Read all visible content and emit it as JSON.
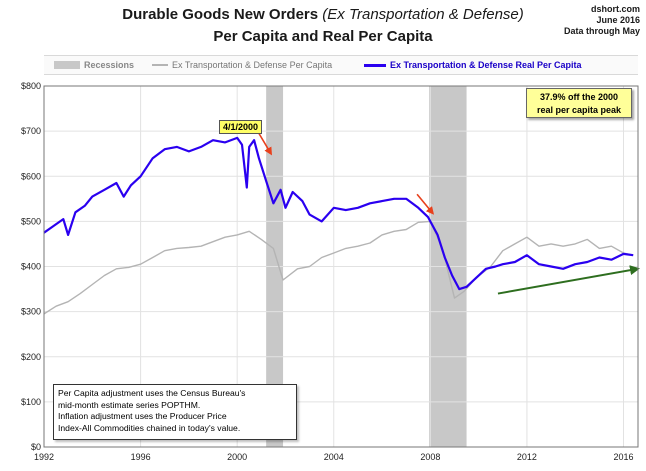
{
  "header": {
    "title_main": "Durable Goods New Orders ",
    "title_italic": "(Ex Transportation & Defense)",
    "subtitle": "Per Capita and Real Per Capita",
    "source_site": "dshort.com",
    "source_date": "June 2016",
    "source_note": "Data through May"
  },
  "callouts": {
    "peak_text_line1": "37.9% off the 2000",
    "peak_text_line2": "real per capita peak",
    "peak_date": "4/1/2000"
  },
  "notes": {
    "line1": "Per Capita adjustment uses the Census Bureau's",
    "line2": "mid-month estimate series POPTHM.",
    "line3": "Inflation adjustment uses the Producer Price",
    "line4": "Index-All Commodities chained in today's value."
  },
  "colors": {
    "real": "#2a00f0",
    "nominal": "#b4b4b4",
    "recession": "#c8c8c8",
    "arrow_red": "#e8401c",
    "trend_green": "#2e6e1f"
  },
  "chart_data": {
    "type": "line",
    "title": "Durable Goods New Orders (Ex Transportation & Defense) Per Capita and Real Per Capita",
    "xlabel": "",
    "ylabel": "",
    "xlim": [
      1992.0,
      2016.6
    ],
    "ylim": [
      0,
      800
    ],
    "grid": true,
    "x_ticks": [
      1992,
      1996,
      2000,
      2004,
      2008,
      2012,
      2016
    ],
    "y_ticks": [
      0,
      100,
      200,
      300,
      400,
      500,
      600,
      700,
      800
    ],
    "y_tick_labels": [
      "$0",
      "$100",
      "$200",
      "$300",
      "$400",
      "$500",
      "$600",
      "$700",
      "$800"
    ],
    "x_tick_labels": [
      "1992",
      "1996",
      "2000",
      "2004",
      "2008",
      "2012",
      "2016"
    ],
    "legend": {
      "position": "top",
      "items": [
        "Recessions",
        "Ex Transportation & Defense Per Capita",
        "Ex Transportation & Defense Real Per Capita"
      ]
    },
    "recessions": [
      {
        "start": 2001.2,
        "end": 2001.9
      },
      {
        "start": 2007.95,
        "end": 2009.5
      }
    ],
    "series": [
      {
        "name": "Ex Transportation & Defense Per Capita",
        "x": [
          1992.0,
          1992.5,
          1993.0,
          1993.5,
          1994.0,
          1994.5,
          1995.0,
          1995.5,
          1996.0,
          1996.5,
          1997.0,
          1997.5,
          1998.0,
          1998.5,
          1999.0,
          1999.5,
          2000.0,
          2000.5,
          2001.0,
          2001.5,
          2001.9,
          2002.5,
          2003.0,
          2003.5,
          2004.0,
          2004.5,
          2005.0,
          2005.5,
          2006.0,
          2006.5,
          2007.0,
          2007.5,
          2008.0,
          2008.5,
          2009.0,
          2009.4,
          2009.9,
          2010.5,
          2011.0,
          2011.5,
          2012.0,
          2012.5,
          2013.0,
          2013.5,
          2014.0,
          2014.5,
          2015.0,
          2015.5,
          2016.0,
          2016.4
        ],
        "values": [
          295,
          312,
          322,
          340,
          360,
          380,
          395,
          398,
          405,
          420,
          435,
          440,
          442,
          445,
          455,
          465,
          470,
          478,
          460,
          440,
          370,
          395,
          400,
          420,
          430,
          440,
          445,
          452,
          470,
          478,
          482,
          498,
          500,
          440,
          330,
          345,
          375,
          400,
          435,
          450,
          465,
          445,
          450,
          445,
          450,
          460,
          440,
          445,
          430,
          425
        ]
      },
      {
        "name": "Ex Transportation & Defense Real Per Capita",
        "x": [
          1992.0,
          1992.4,
          1992.8,
          1993.0,
          1993.3,
          1993.7,
          1994.0,
          1994.5,
          1995.0,
          1995.3,
          1995.6,
          1996.0,
          1996.5,
          1997.0,
          1997.5,
          1998.0,
          1998.5,
          1999.0,
          1999.5,
          2000.0,
          2000.2,
          2000.4,
          2000.5,
          2000.7,
          2000.9,
          2001.2,
          2001.5,
          2001.8,
          2002.0,
          2002.3,
          2002.7,
          2003.0,
          2003.5,
          2004.0,
          2004.5,
          2005.0,
          2005.5,
          2006.0,
          2006.5,
          2007.0,
          2007.5,
          2007.9,
          2008.3,
          2008.6,
          2008.9,
          2009.2,
          2009.5,
          2009.9,
          2010.3,
          2010.7,
          2011.0,
          2011.5,
          2012.0,
          2012.5,
          2013.0,
          2013.5,
          2014.0,
          2014.5,
          2015.0,
          2015.5,
          2016.0,
          2016.4
        ],
        "values": [
          475,
          490,
          505,
          470,
          520,
          535,
          555,
          570,
          585,
          555,
          580,
          600,
          640,
          660,
          665,
          655,
          665,
          680,
          675,
          685,
          670,
          575,
          665,
          680,
          640,
          590,
          540,
          570,
          530,
          565,
          545,
          515,
          500,
          530,
          525,
          530,
          540,
          545,
          550,
          550,
          530,
          510,
          470,
          420,
          380,
          350,
          355,
          375,
          395,
          400,
          405,
          410,
          425,
          405,
          400,
          395,
          405,
          410,
          420,
          415,
          428,
          425
        ]
      }
    ],
    "annotations": [
      {
        "type": "arrow",
        "color": "red",
        "from": [
          2000.9,
          695
        ],
        "to": [
          2001.4,
          650
        ]
      },
      {
        "type": "arrow",
        "color": "red",
        "from": [
          2007.45,
          560
        ],
        "to": [
          2008.1,
          518
        ]
      },
      {
        "type": "trend_arrow",
        "color": "green",
        "from": [
          2010.8,
          340
        ],
        "to": [
          2016.6,
          395
        ]
      }
    ]
  }
}
